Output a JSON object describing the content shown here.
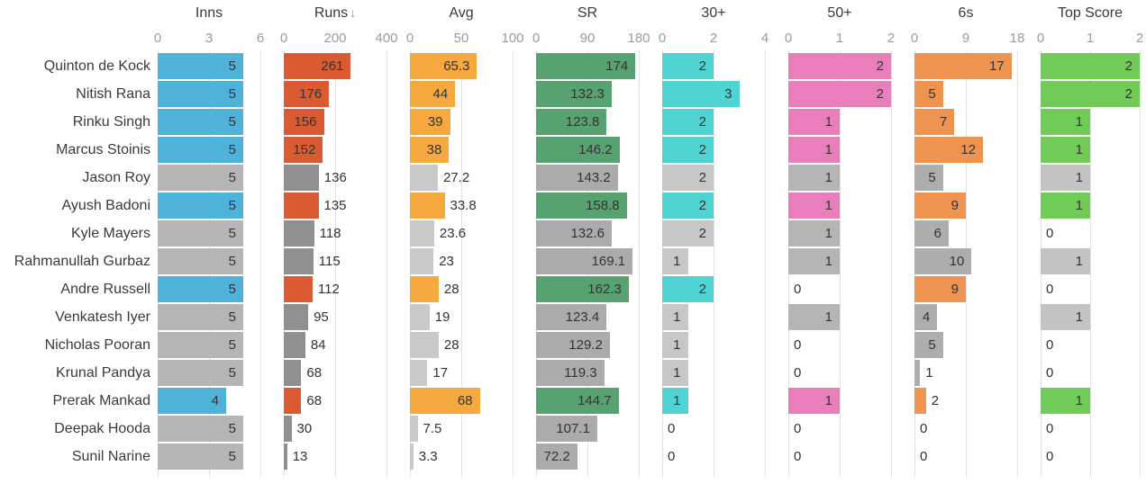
{
  "chart_data": {
    "type": "bar",
    "layout": "horizontal-bar-table",
    "title": "",
    "legend": "none",
    "grid": "vertical-light",
    "sort": {
      "column": "Runs",
      "direction": "descending"
    },
    "columns": [
      {
        "key": "inns",
        "label": "Inns",
        "ticks": [
          "0",
          "3",
          "6"
        ],
        "max": 6,
        "color": "#4fb2d9",
        "gray": "#b5b5b5",
        "sorted": false
      },
      {
        "key": "runs",
        "label": "Runs",
        "ticks": [
          "0",
          "200",
          "400"
        ],
        "max": 400,
        "color": "#da5b32",
        "gray": "#8f8f8f",
        "sorted": true,
        "sort_icon": "↓"
      },
      {
        "key": "avg",
        "label": "Avg",
        "ticks": [
          "0",
          "50",
          "100"
        ],
        "max": 100,
        "color": "#f5a93e",
        "gray": "#c9c9c9",
        "sorted": false
      },
      {
        "key": "sr",
        "label": "SR",
        "ticks": [
          "0",
          "90",
          "180"
        ],
        "max": 180,
        "color": "#58a170",
        "gray": "#ababab",
        "sorted": false
      },
      {
        "key": "30plus",
        "label": "30+",
        "ticks": [
          "0",
          "2",
          "4"
        ],
        "max": 4,
        "color": "#50d3d3",
        "gray": "#c7c7c7",
        "sorted": false
      },
      {
        "key": "50plus",
        "label": "50+",
        "ticks": [
          "0",
          "1",
          "2"
        ],
        "max": 2,
        "color": "#e97fba",
        "gray": "#b5b5b5",
        "sorted": false
      },
      {
        "key": "sixes",
        "label": "6s",
        "ticks": [
          "0",
          "9",
          "18"
        ],
        "max": 18,
        "color": "#ef9350",
        "gray": "#adadad",
        "sorted": false
      },
      {
        "key": "top",
        "label": "Top Score",
        "ticks": [
          "0",
          "1",
          "2"
        ],
        "max": 2,
        "color": "#70cb57",
        "gray": "#c4c4c4",
        "sorted": false
      }
    ],
    "rows": [
      {
        "name": "Quinton de Kock",
        "highlighted": true,
        "values": [
          "5",
          "261",
          "65.3",
          "174",
          "2",
          "2",
          "17",
          "2"
        ]
      },
      {
        "name": "Nitish Rana",
        "highlighted": true,
        "values": [
          "5",
          "176",
          "44",
          "132.3",
          "3",
          "2",
          "5",
          "2"
        ]
      },
      {
        "name": "Rinku Singh",
        "highlighted": true,
        "values": [
          "5",
          "156",
          "39",
          "123.8",
          "2",
          "1",
          "7",
          "1"
        ]
      },
      {
        "name": "Marcus Stoinis",
        "highlighted": true,
        "values": [
          "5",
          "152",
          "38",
          "146.2",
          "2",
          "1",
          "12",
          "1"
        ]
      },
      {
        "name": "Jason Roy",
        "highlighted": false,
        "values": [
          "5",
          "136",
          "27.2",
          "143.2",
          "2",
          "1",
          "5",
          "1"
        ]
      },
      {
        "name": "Ayush Badoni",
        "highlighted": true,
        "values": [
          "5",
          "135",
          "33.8",
          "158.8",
          "2",
          "1",
          "9",
          "1"
        ]
      },
      {
        "name": "Kyle Mayers",
        "highlighted": false,
        "values": [
          "5",
          "118",
          "23.6",
          "132.6",
          "2",
          "1",
          "6",
          "0"
        ]
      },
      {
        "name": "Rahmanullah Gurbaz",
        "highlighted": false,
        "values": [
          "5",
          "115",
          "23",
          "169.1",
          "1",
          "1",
          "10",
          "1"
        ]
      },
      {
        "name": "Andre Russell",
        "highlighted": true,
        "values": [
          "5",
          "112",
          "28",
          "162.3",
          "2",
          "0",
          "9",
          "0"
        ]
      },
      {
        "name": "Venkatesh Iyer",
        "highlighted": false,
        "values": [
          "5",
          "95",
          "19",
          "123.4",
          "1",
          "1",
          "4",
          "1"
        ]
      },
      {
        "name": "Nicholas Pooran",
        "highlighted": false,
        "values": [
          "5",
          "84",
          "28",
          "129.2",
          "1",
          "0",
          "5",
          "0"
        ]
      },
      {
        "name": "Krunal Pandya",
        "highlighted": false,
        "values": [
          "5",
          "68",
          "17",
          "119.3",
          "1",
          "0",
          "1",
          "0"
        ]
      },
      {
        "name": "Prerak Mankad",
        "highlighted": true,
        "values": [
          "4",
          "68",
          "68",
          "144.7",
          "1",
          "1",
          "2",
          "1"
        ]
      },
      {
        "name": "Deepak Hooda",
        "highlighted": false,
        "values": [
          "5",
          "30",
          "7.5",
          "107.1",
          "0",
          "0",
          "0",
          "0"
        ]
      },
      {
        "name": "Sunil Narine",
        "highlighted": false,
        "values": [
          "5",
          "13",
          "3.3",
          "72.2",
          "0",
          "0",
          "0",
          "0"
        ]
      }
    ]
  }
}
